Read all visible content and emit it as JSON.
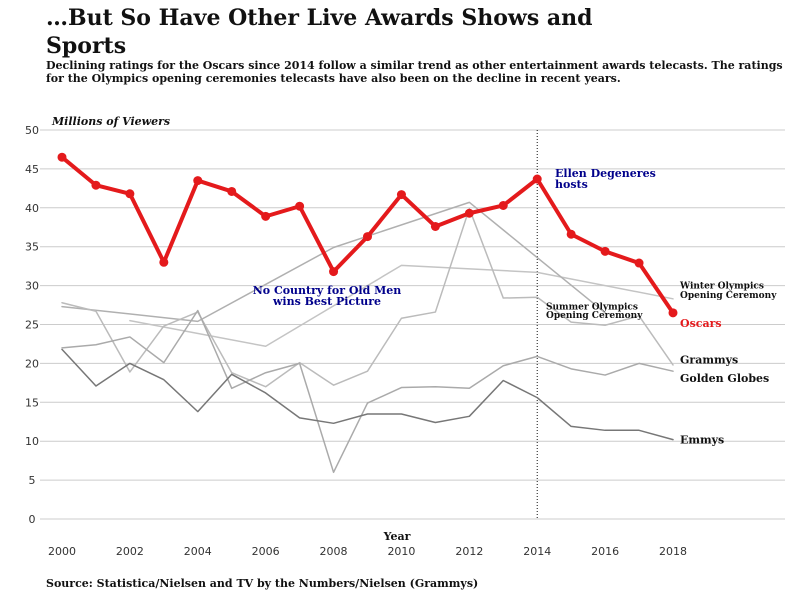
{
  "title": "…But So Have Other Live Awards Shows and Sports",
  "subtitle": "Declining ratings for the Oscars since 2014 follow a similar trend as other entertainment awards telecasts. The ratings for the Olympics opening ceremonies telecasts have also been on the decline in recent years.",
  "source": "Source: Statistica/Nielsen and TV by the Numbers/Nielsen (Grammys)",
  "colors": {
    "oscars": "#e41a1c",
    "grammys": "#bbbbbb",
    "golden_globes": "#aaaaaa",
    "emmys": "#777777",
    "winter_olympics": "#c4c4c4",
    "summer_olympics": "#b0b0b0",
    "annotation": "#00008b",
    "grid": "#cccccc"
  },
  "chart_data": {
    "type": "line",
    "ylabel": "Millions of Viewers",
    "xlabel": "Year",
    "xlim": [
      2000,
      2018
    ],
    "ylim": [
      0,
      50
    ],
    "grid": true,
    "x_ticks": [
      "2000",
      "2002",
      "2004",
      "2006",
      "2008",
      "2010",
      "2012",
      "2014",
      "2016",
      "2018"
    ],
    "y_ticks": [
      "0",
      "5",
      "10",
      "15",
      "20",
      "25",
      "30",
      "35",
      "40",
      "45",
      "50"
    ],
    "vline": {
      "x": 2014,
      "style": "dotted"
    },
    "series": [
      {
        "name": "Oscars",
        "key": "oscars",
        "x": [
          2000,
          2001,
          2002,
          2003,
          2004,
          2005,
          2006,
          2007,
          2008,
          2009,
          2010,
          2011,
          2012,
          2013,
          2014,
          2015,
          2016,
          2017,
          2018
        ],
        "values": [
          46.5,
          42.9,
          41.8,
          33.0,
          43.5,
          42.1,
          38.9,
          40.2,
          31.8,
          36.3,
          41.7,
          37.6,
          39.3,
          40.3,
          43.7,
          36.6,
          34.4,
          32.9,
          26.5
        ]
      },
      {
        "name": "Grammys",
        "key": "grammys",
        "x": [
          2000,
          2001,
          2002,
          2003,
          2004,
          2005,
          2006,
          2007,
          2008,
          2009,
          2010,
          2011,
          2012,
          2013,
          2014,
          2015,
          2016,
          2017,
          2018
        ],
        "values": [
          27.8,
          26.7,
          18.9,
          24.8,
          26.6,
          18.8,
          17.0,
          20.1,
          17.2,
          19.0,
          25.8,
          26.6,
          39.9,
          28.4,
          28.5,
          25.3,
          24.9,
          26.1,
          19.8
        ]
      },
      {
        "name": "Golden Globes",
        "key": "golden_globes",
        "x": [
          2000,
          2001,
          2002,
          2003,
          2004,
          2005,
          2006,
          2007,
          2008,
          2009,
          2010,
          2011,
          2012,
          2013,
          2014,
          2015,
          2016,
          2017,
          2018
        ],
        "values": [
          22.0,
          22.4,
          23.4,
          20.1,
          26.8,
          16.8,
          18.8,
          20.0,
          6.0,
          14.9,
          16.9,
          17.0,
          16.8,
          19.7,
          20.9,
          19.3,
          18.5,
          20.0,
          19.0
        ]
      },
      {
        "name": "Emmys",
        "key": "emmys",
        "x": [
          2000,
          2001,
          2002,
          2003,
          2004,
          2005,
          2006,
          2007,
          2008,
          2009,
          2010,
          2011,
          2012,
          2013,
          2014,
          2015,
          2016,
          2017,
          2018
        ],
        "values": [
          21.8,
          17.1,
          20.0,
          17.9,
          13.8,
          18.6,
          16.2,
          13.0,
          12.3,
          13.5,
          13.5,
          12.4,
          13.2,
          17.8,
          15.6,
          11.9,
          11.4,
          11.4,
          10.2
        ]
      },
      {
        "name": "Winter Olympics Opening Ceremony",
        "key": "winter_olympics",
        "x": [
          2002,
          2006,
          2010,
          2014,
          2018
        ],
        "values": [
          25.5,
          22.2,
          32.6,
          31.7,
          28.3
        ]
      },
      {
        "name": "Summer Olympics Opening Ceremony",
        "key": "summer_olympics",
        "x": [
          2000,
          2004,
          2008,
          2012,
          2016
        ],
        "values": [
          27.3,
          25.4,
          34.9,
          40.7,
          26.5
        ]
      }
    ],
    "annotations": [
      {
        "text": "No Country for Old Men",
        "text2": "wins Best Picture",
        "x": 2009,
        "y": 29.5
      },
      {
        "text": "Ellen Degeneres",
        "text2": "hosts",
        "x": 2014.5,
        "y": 44.5
      }
    ]
  }
}
